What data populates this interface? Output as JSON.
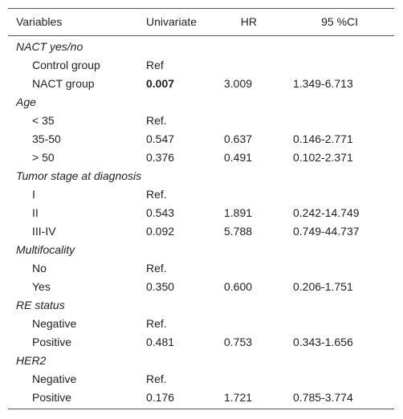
{
  "table": {
    "headers": {
      "variables": "Variables",
      "univariate": "Univariate",
      "hr": "HR",
      "ci": "95 %CI"
    },
    "rows": [
      {
        "type": "group",
        "label": "NACT yes/no"
      },
      {
        "type": "item",
        "label": "Control group",
        "univariate": "Ref",
        "hr": "",
        "ci": ""
      },
      {
        "type": "item",
        "label": "NACT group",
        "univariate": "0.007",
        "hr": "3.009",
        "ci": "1.349-6.713",
        "univariate_bold": true
      },
      {
        "type": "group",
        "label": "Age"
      },
      {
        "type": "item",
        "label": "< 35",
        "univariate": "Ref.",
        "hr": "",
        "ci": ""
      },
      {
        "type": "item",
        "label": "35-50",
        "univariate": "0.547",
        "hr": "0.637",
        "ci": "0.146-2.771"
      },
      {
        "type": "item",
        "label": "> 50",
        "univariate": "0.376",
        "hr": "0.491",
        "ci": "0.102-2.371"
      },
      {
        "type": "group",
        "label": "Tumor stage at diagnosis"
      },
      {
        "type": "item",
        "label": "I",
        "univariate": "Ref.",
        "hr": "",
        "ci": ""
      },
      {
        "type": "item",
        "label": "II",
        "univariate": "0.543",
        "hr": "1.891",
        "ci": "0.242-14.749"
      },
      {
        "type": "item",
        "label": "III-IV",
        "univariate": "0.092",
        "hr": "5.788",
        "ci": "0.749-44.737"
      },
      {
        "type": "group",
        "label": "Multifocality"
      },
      {
        "type": "item",
        "label": "No",
        "univariate": "Ref.",
        "hr": "",
        "ci": ""
      },
      {
        "type": "item",
        "label": "Yes",
        "univariate": "0.350",
        "hr": "0.600",
        "ci": "0.206-1.751"
      },
      {
        "type": "group",
        "label": "RE status"
      },
      {
        "type": "item",
        "label": "Negative",
        "univariate": "Ref.",
        "hr": "",
        "ci": ""
      },
      {
        "type": "item",
        "label": "Positive",
        "univariate": "0.481",
        "hr": "0.753",
        "ci": "0.343-1.656"
      },
      {
        "type": "group",
        "label": "HER2"
      },
      {
        "type": "item",
        "label": "Negative",
        "univariate": "Ref.",
        "hr": "",
        "ci": ""
      },
      {
        "type": "item",
        "label": "Positive",
        "univariate": "0.176",
        "hr": "1.721",
        "ci": "0.785-3.774"
      }
    ]
  }
}
